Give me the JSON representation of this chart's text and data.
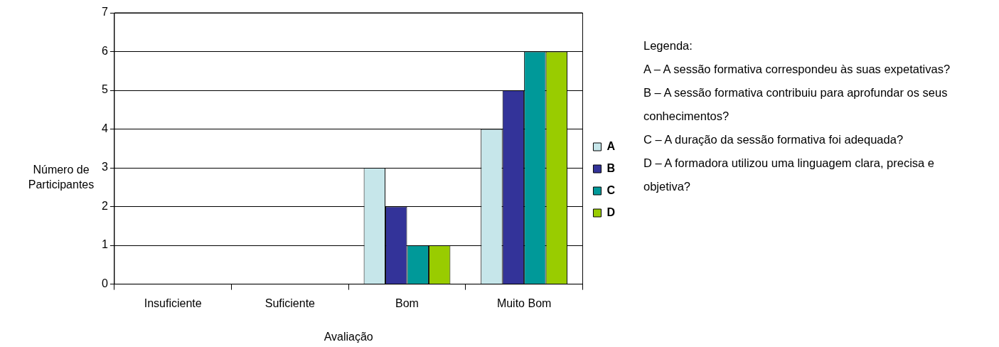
{
  "chart_data": {
    "type": "bar",
    "categories": [
      "Insuficiente",
      "Suficiente",
      "Bom",
      "Muito Bom"
    ],
    "series": [
      {
        "name": "A",
        "color": "#c6e6ea",
        "values": [
          0,
          0,
          3,
          4
        ]
      },
      {
        "name": "B",
        "color": "#333399",
        "values": [
          0,
          0,
          2,
          5
        ]
      },
      {
        "name": "C",
        "color": "#009999",
        "values": [
          0,
          0,
          1,
          6
        ]
      },
      {
        "name": "D",
        "color": "#99cc00",
        "values": [
          0,
          0,
          1,
          6
        ]
      }
    ],
    "xlabel": "Avaliação",
    "ylabel": "Número de Participantes",
    "ylim": [
      0,
      7
    ],
    "yticks": [
      0,
      1,
      2,
      3,
      4,
      5,
      6,
      7
    ],
    "grid": "y",
    "legend": "right",
    "annotations": [
      "Legenda:",
      "A – A sessão formativa correspondeu às suas expetativas?",
      "B – A sessão formativa contribuiu para aprofundar os seus conhecimentos?",
      "C – A duração da sessão formativa foi adequada?",
      "D – A formadora utilizou uma linguagem clara, precisa e objetiva?"
    ]
  }
}
